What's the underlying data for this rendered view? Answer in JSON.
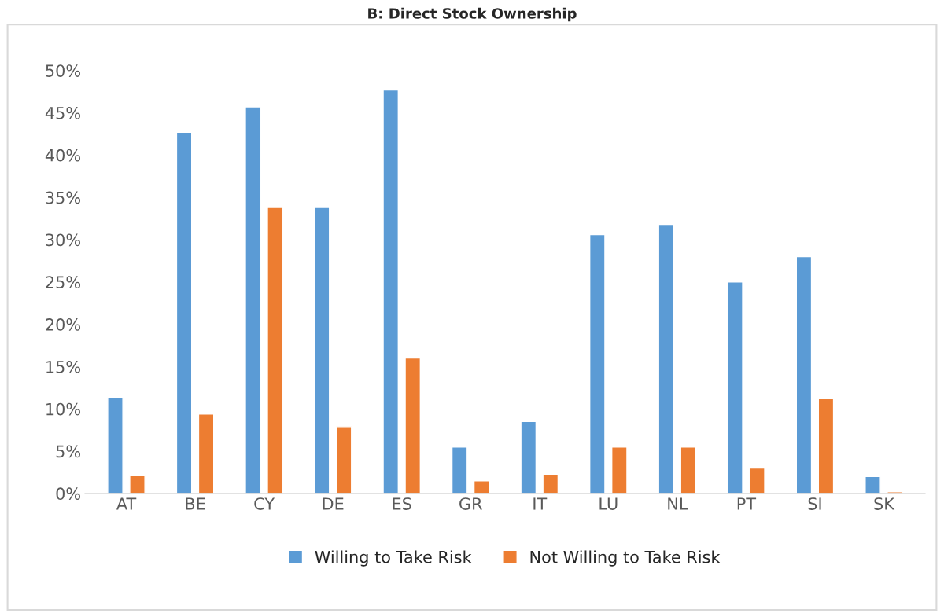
{
  "chart_data": {
    "type": "bar",
    "title": "B: Direct Stock Ownership",
    "categories": [
      "AT",
      "BE",
      "CY",
      "DE",
      "ES",
      "GR",
      "IT",
      "LU",
      "NL",
      "PT",
      "SI",
      "SK"
    ],
    "series": [
      {
        "name": "Willing to Take Risk",
        "color": "#5b9bd5",
        "values": [
          11.4,
          42.7,
          45.7,
          33.8,
          47.7,
          5.5,
          8.5,
          30.6,
          31.8,
          25.0,
          28.0,
          2.0
        ]
      },
      {
        "name": "Not Willing to Take Risk",
        "color": "#ed7d31",
        "values": [
          2.1,
          9.4,
          33.8,
          7.9,
          16.0,
          1.5,
          2.2,
          5.5,
          5.5,
          3.0,
          11.2,
          0.2
        ]
      }
    ],
    "ylim": [
      0,
      50
    ],
    "yticks": [
      {
        "value": 0,
        "label": "0%"
      },
      {
        "value": 5,
        "label": "5%"
      },
      {
        "value": 10,
        "label": "10%"
      },
      {
        "value": 15,
        "label": "15%"
      },
      {
        "value": 20,
        "label": "20%"
      },
      {
        "value": 25,
        "label": "25%"
      },
      {
        "value": 30,
        "label": "30%"
      },
      {
        "value": 35,
        "label": "35%"
      },
      {
        "value": 40,
        "label": "40%"
      },
      {
        "value": 45,
        "label": "45%"
      },
      {
        "value": 50,
        "label": "50%"
      }
    ],
    "grid": false,
    "legend": "bottom"
  }
}
